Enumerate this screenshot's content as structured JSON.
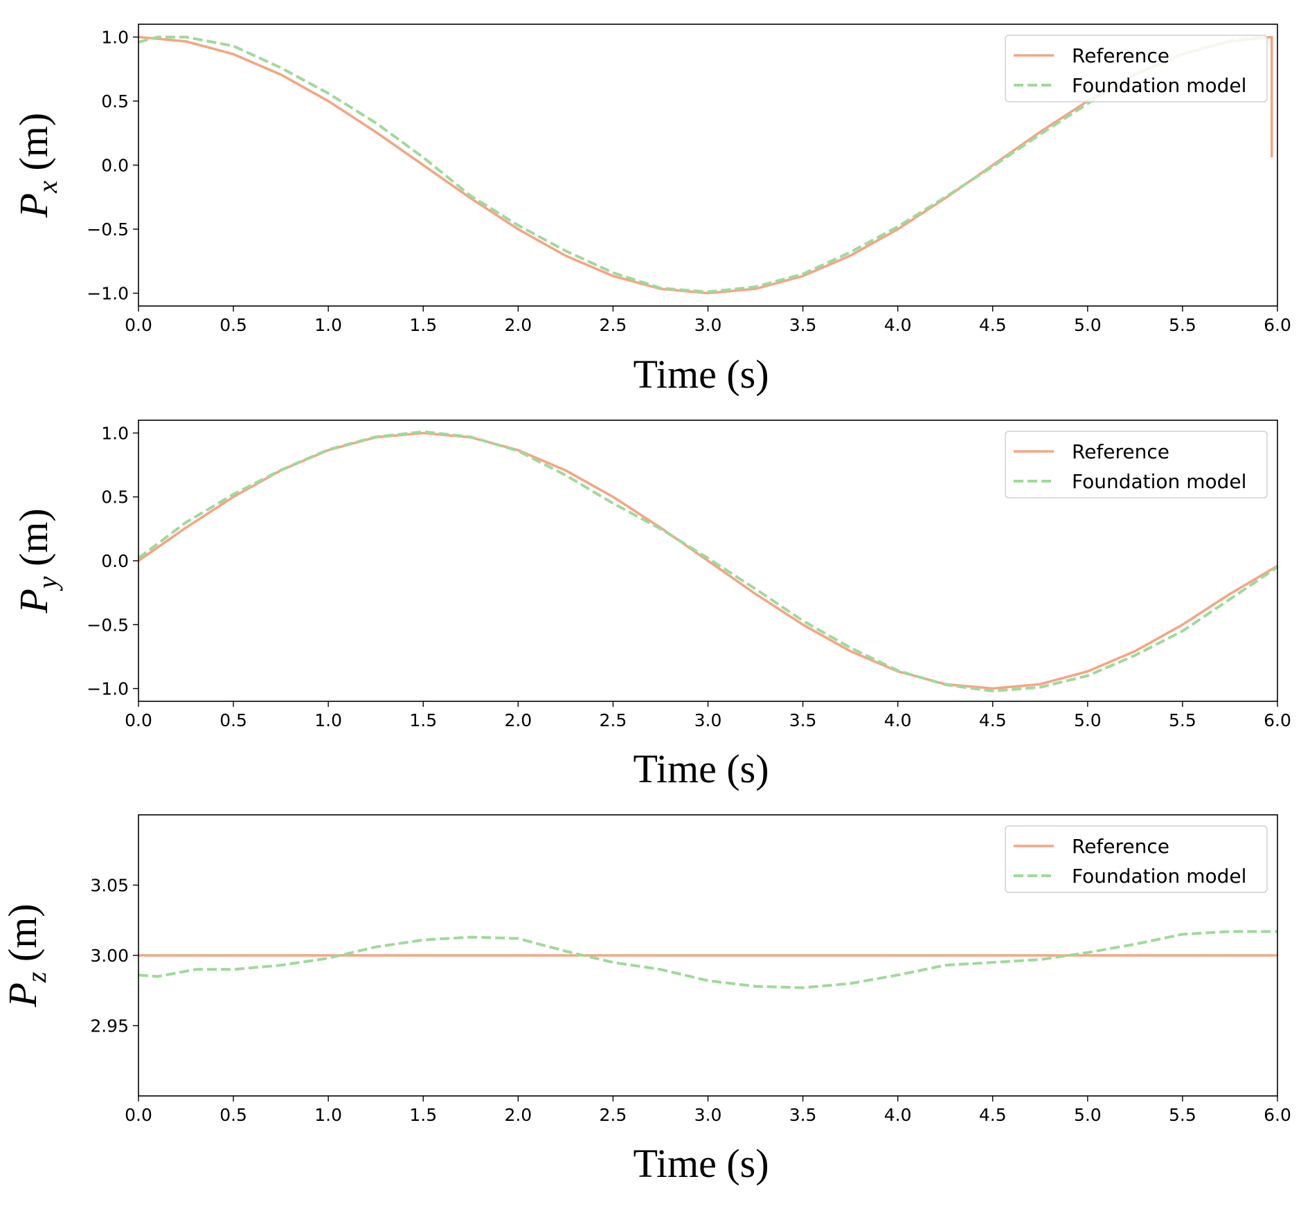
{
  "legend": {
    "reference": "Reference",
    "foundation": "Foundation model"
  },
  "colors": {
    "reference": "#f4a582",
    "foundation": "#9fd99a",
    "axis": "#000000"
  },
  "chart_data": [
    {
      "type": "line",
      "id": "px",
      "xlabel": "Time (s)",
      "ylabel_main": "P",
      "ylabel_sub": "x",
      "ylabel_unit": "(m)",
      "xlim": [
        0,
        6
      ],
      "ylim": [
        -1.1,
        1.1
      ],
      "xticks": [
        0,
        0.5,
        1,
        1.5,
        2,
        2.5,
        3,
        3.5,
        4,
        4.5,
        5,
        5.5,
        6
      ],
      "xtick_labels": [
        "0.0",
        "0.5",
        "1.0",
        "1.5",
        "2.0",
        "2.5",
        "3.0",
        "3.5",
        "4.0",
        "4.5",
        "5.0",
        "5.5",
        "6.0"
      ],
      "yticks": [
        -1,
        -0.5,
        0,
        0.5,
        1
      ],
      "ytick_labels": [
        "−1.0",
        "−0.5",
        "0.0",
        "0.5",
        "1.0"
      ],
      "legend_position": "top-right",
      "series": [
        {
          "name": "Reference",
          "x": [
            0,
            0.25,
            0.5,
            0.75,
            1,
            1.25,
            1.5,
            1.75,
            2,
            2.25,
            2.5,
            2.75,
            3,
            3.25,
            3.5,
            3.75,
            4,
            4.25,
            4.5,
            4.75,
            5,
            5.25,
            5.5,
            5.75,
            5.96,
            5.97,
            5.97
          ],
          "y": [
            1,
            0.966,
            0.866,
            0.707,
            0.5,
            0.259,
            0,
            -0.259,
            -0.5,
            -0.707,
            -0.866,
            -0.966,
            -1,
            -0.966,
            -0.866,
            -0.707,
            -0.5,
            -0.259,
            0,
            0.259,
            0.5,
            0.707,
            0.866,
            0.966,
            0.999,
            0.999,
            0.06
          ]
        },
        {
          "name": "Foundation model",
          "x": [
            0,
            0.1,
            0.25,
            0.5,
            0.75,
            1,
            1.25,
            1.5,
            1.75,
            2,
            2.25,
            2.5,
            2.75,
            3,
            3.25,
            3.5,
            3.75,
            4,
            4.25,
            4.5,
            4.75,
            5,
            5.25,
            5.5,
            5.75,
            5.9
          ],
          "y": [
            0.96,
            1.0,
            1.0,
            0.93,
            0.76,
            0.56,
            0.33,
            0.06,
            -0.24,
            -0.47,
            -0.67,
            -0.84,
            -0.96,
            -0.99,
            -0.95,
            -0.85,
            -0.68,
            -0.48,
            -0.25,
            -0.01,
            0.24,
            0.48,
            0.71,
            0.87,
            0.97,
            1.0
          ]
        }
      ]
    },
    {
      "type": "line",
      "id": "py",
      "xlabel": "Time (s)",
      "ylabel_main": "P",
      "ylabel_sub": "y",
      "ylabel_unit": "(m)",
      "xlim": [
        0,
        6
      ],
      "ylim": [
        -1.1,
        1.1
      ],
      "xticks": [
        0,
        0.5,
        1,
        1.5,
        2,
        2.5,
        3,
        3.5,
        4,
        4.5,
        5,
        5.5,
        6
      ],
      "xtick_labels": [
        "0.0",
        "0.5",
        "1.0",
        "1.5",
        "2.0",
        "2.5",
        "3.0",
        "3.5",
        "4.0",
        "4.5",
        "5.0",
        "5.5",
        "6.0"
      ],
      "yticks": [
        -1,
        -0.5,
        0,
        0.5,
        1
      ],
      "ytick_labels": [
        "−1.0",
        "−0.5",
        "0.0",
        "0.5",
        "1.0"
      ],
      "legend_position": "top-right",
      "series": [
        {
          "name": "Reference",
          "x": [
            0,
            0.25,
            0.5,
            0.75,
            1,
            1.25,
            1.5,
            1.75,
            2,
            2.25,
            2.5,
            2.75,
            3,
            3.25,
            3.5,
            3.75,
            4,
            4.25,
            4.5,
            4.75,
            5,
            5.25,
            5.5,
            5.75,
            6
          ],
          "y": [
            0,
            0.259,
            0.5,
            0.707,
            0.866,
            0.966,
            1,
            0.966,
            0.866,
            0.707,
            0.5,
            0.259,
            0,
            -0.259,
            -0.5,
            -0.707,
            -0.866,
            -0.966,
            -1,
            -0.966,
            -0.866,
            -0.707,
            -0.5,
            -0.259,
            -0.04
          ]
        },
        {
          "name": "Foundation model",
          "x": [
            0,
            0.25,
            0.5,
            0.75,
            1,
            1.25,
            1.5,
            1.75,
            2,
            2.25,
            2.5,
            2.75,
            3,
            3.25,
            3.5,
            3.75,
            4,
            4.25,
            4.5,
            4.75,
            5,
            5.25,
            5.5,
            5.75,
            6
          ],
          "y": [
            0.02,
            0.3,
            0.52,
            0.71,
            0.87,
            0.97,
            1.01,
            0.97,
            0.86,
            0.67,
            0.45,
            0.25,
            0.02,
            -0.22,
            -0.47,
            -0.68,
            -0.86,
            -0.97,
            -1.02,
            -0.99,
            -0.9,
            -0.74,
            -0.55,
            -0.3,
            -0.05
          ]
        }
      ]
    },
    {
      "type": "line",
      "id": "pz",
      "xlabel": "Time (s)",
      "ylabel_main": "P",
      "ylabel_sub": "z",
      "ylabel_unit": "(m)",
      "xlim": [
        0,
        6
      ],
      "ylim": [
        2.9,
        3.1
      ],
      "xticks": [
        0,
        0.5,
        1,
        1.5,
        2,
        2.5,
        3,
        3.5,
        4,
        4.5,
        5,
        5.5,
        6
      ],
      "xtick_labels": [
        "0.0",
        "0.5",
        "1.0",
        "1.5",
        "2.0",
        "2.5",
        "3.0",
        "3.5",
        "4.0",
        "4.5",
        "5.0",
        "5.5",
        "6.0"
      ],
      "yticks": [
        2.95,
        3.0,
        3.05
      ],
      "ytick_labels": [
        "2.95",
        "3.00",
        "3.05"
      ],
      "legend_position": "top-right",
      "series": [
        {
          "name": "Reference",
          "x": [
            0,
            6
          ],
          "y": [
            3.0,
            3.0
          ]
        },
        {
          "name": "Foundation model",
          "x": [
            0,
            0.1,
            0.3,
            0.5,
            0.75,
            1,
            1.25,
            1.5,
            1.75,
            2,
            2.25,
            2.5,
            2.75,
            3,
            3.25,
            3.5,
            3.75,
            4,
            4.25,
            4.5,
            4.75,
            5,
            5.25,
            5.5,
            5.75,
            6
          ],
          "y": [
            2.986,
            2.985,
            2.99,
            2.99,
            2.993,
            2.998,
            3.006,
            3.011,
            3.013,
            3.012,
            3.003,
            2.995,
            2.99,
            2.982,
            2.978,
            2.977,
            2.98,
            2.986,
            2.993,
            2.995,
            2.997,
            3.002,
            3.008,
            3.015,
            3.017,
            3.017
          ]
        }
      ]
    }
  ]
}
